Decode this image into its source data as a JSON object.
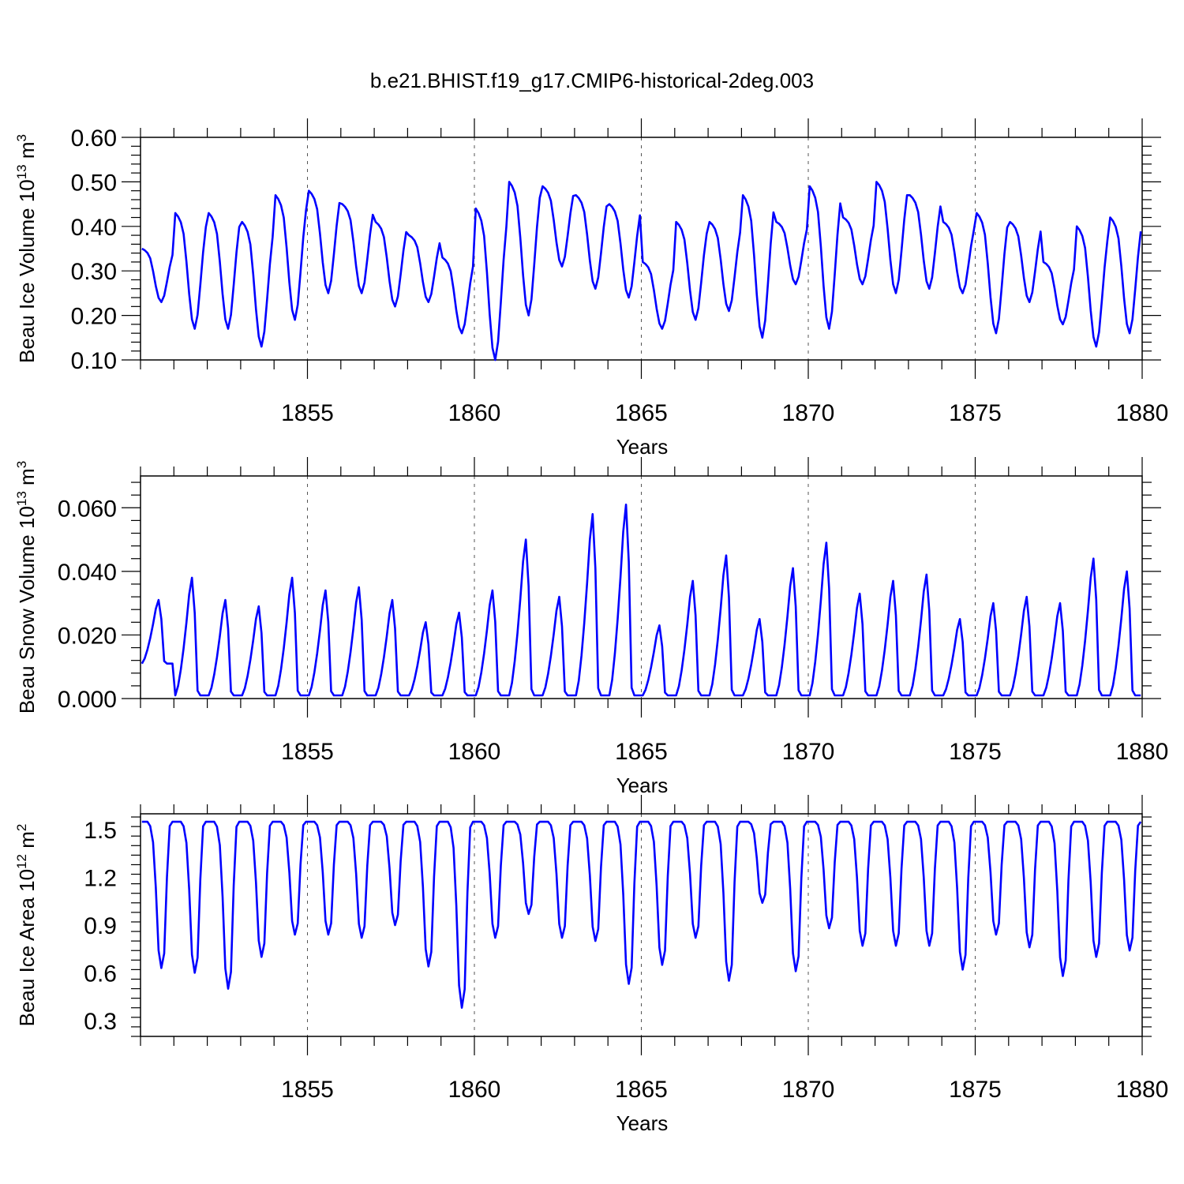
{
  "title": "b.e21.BHIST.f19_g17.CMIP6-historical-2deg.003",
  "colors": {
    "line": "#0000ff",
    "axis": "#000000",
    "refline": "#555555"
  },
  "chart_data": [
    {
      "type": "line",
      "ylabel_main": "Beau Ice Volume 10",
      "ylabel_exp": "13",
      "ylabel_unit": "m",
      "ylabel_unit_exp": "3",
      "xlabel": "Years",
      "xlim": [
        1850,
        1880
      ],
      "ylim": [
        0.1,
        0.6
      ],
      "xticks": [
        1855,
        1860,
        1865,
        1870,
        1875,
        1880
      ],
      "xtick_labels": [
        "1855",
        "1860",
        "1865",
        "1870",
        "1875",
        "1880"
      ],
      "yticks": [
        0.1,
        0.2,
        0.3,
        0.4,
        0.5,
        0.6
      ],
      "ytick_labels": [
        "0.10",
        "0.20",
        "0.30",
        "0.40",
        "0.50",
        "0.60"
      ],
      "refline_years": [
        1855,
        1860,
        1865,
        1870,
        1875
      ],
      "annual": {
        "max": [
          0.35,
          0.43,
          0.43,
          0.41,
          0.47,
          0.48,
          0.45,
          0.41,
          0.38,
          0.33,
          0.44,
          0.5,
          0.49,
          0.47,
          0.45,
          0.32,
          0.41,
          0.41,
          0.47,
          0.41,
          0.49,
          0.42,
          0.5,
          0.47,
          0.41,
          0.43,
          0.41,
          0.32,
          0.4,
          0.42
        ],
        "min": [
          0.23,
          0.17,
          0.17,
          0.13,
          0.19,
          0.25,
          0.25,
          0.22,
          0.23,
          0.16,
          0.1,
          0.2,
          0.31,
          0.26,
          0.24,
          0.17,
          0.19,
          0.21,
          0.15,
          0.27,
          0.17,
          0.27,
          0.25,
          0.26,
          0.25,
          0.16,
          0.23,
          0.18,
          0.13,
          0.16
        ]
      }
    },
    {
      "type": "line",
      "ylabel_main": "Beau Snow Volume 10",
      "ylabel_exp": "13",
      "ylabel_unit": "m",
      "ylabel_unit_exp": "3",
      "xlabel": "Years",
      "xlim": [
        1850,
        1880
      ],
      "ylim": [
        0.0,
        0.07
      ],
      "xticks": [
        1855,
        1860,
        1865,
        1870,
        1875,
        1880
      ],
      "xtick_labels": [
        "1855",
        "1860",
        "1865",
        "1870",
        "1875",
        "1880"
      ],
      "yticks": [
        0.0,
        0.02,
        0.04,
        0.06
      ],
      "ytick_labels": [
        "0.000",
        "0.020",
        "0.040",
        "0.060"
      ],
      "refline_years": [
        1855,
        1860,
        1865,
        1870,
        1875
      ],
      "annual": {
        "max": [
          0.031,
          0.038,
          0.031,
          0.029,
          0.038,
          0.034,
          0.035,
          0.031,
          0.024,
          0.027,
          0.034,
          0.05,
          0.032,
          0.058,
          0.061,
          0.023,
          0.037,
          0.045,
          0.025,
          0.041,
          0.049,
          0.033,
          0.037,
          0.039,
          0.025,
          0.03,
          0.032,
          0.03,
          0.044,
          0.04
        ],
        "min": [
          0.011,
          0.001,
          0.001,
          0.001,
          0.001,
          0.001,
          0.001,
          0.001,
          0.001,
          0.001,
          0.001,
          0.001,
          0.001,
          0.001,
          0.001,
          0.001,
          0.001,
          0.001,
          0.001,
          0.001,
          0.001,
          0.001,
          0.001,
          0.001,
          0.001,
          0.001,
          0.001,
          0.001,
          0.001,
          0.001
        ]
      }
    },
    {
      "type": "line",
      "ylabel_main": "Beau Ice Area 10",
      "ylabel_exp": "12",
      "ylabel_unit": "m",
      "ylabel_unit_exp": "2",
      "xlabel": "Years",
      "xlim": [
        1850,
        1880
      ],
      "ylim": [
        0.2,
        1.6
      ],
      "xticks": [
        1855,
        1860,
        1865,
        1870,
        1875,
        1880
      ],
      "xtick_labels": [
        "1855",
        "1860",
        "1865",
        "1870",
        "1875",
        "1880"
      ],
      "yticks": [
        0.3,
        0.6,
        0.9,
        1.2,
        1.5
      ],
      "ytick_labels": [
        "0.3",
        "0.6",
        "0.9",
        "1.2",
        "1.5"
      ],
      "refline_years": [
        1855,
        1860,
        1865,
        1870,
        1875
      ],
      "annual": {
        "max": [
          1.55,
          1.55,
          1.55,
          1.55,
          1.55,
          1.55,
          1.55,
          1.55,
          1.55,
          1.55,
          1.55,
          1.55,
          1.55,
          1.55,
          1.55,
          1.55,
          1.55,
          1.55,
          1.55,
          1.55,
          1.55,
          1.55,
          1.55,
          1.55,
          1.55,
          1.55,
          1.55,
          1.55,
          1.55,
          1.55
        ],
        "min": [
          0.63,
          0.6,
          0.5,
          0.7,
          0.84,
          0.84,
          0.82,
          0.9,
          0.64,
          0.38,
          0.82,
          0.97,
          0.82,
          0.8,
          0.53,
          0.65,
          0.82,
          0.55,
          1.04,
          0.61,
          0.88,
          0.77,
          0.77,
          0.77,
          0.62,
          0.84,
          0.76,
          0.58,
          0.7,
          0.74
        ]
      }
    }
  ]
}
